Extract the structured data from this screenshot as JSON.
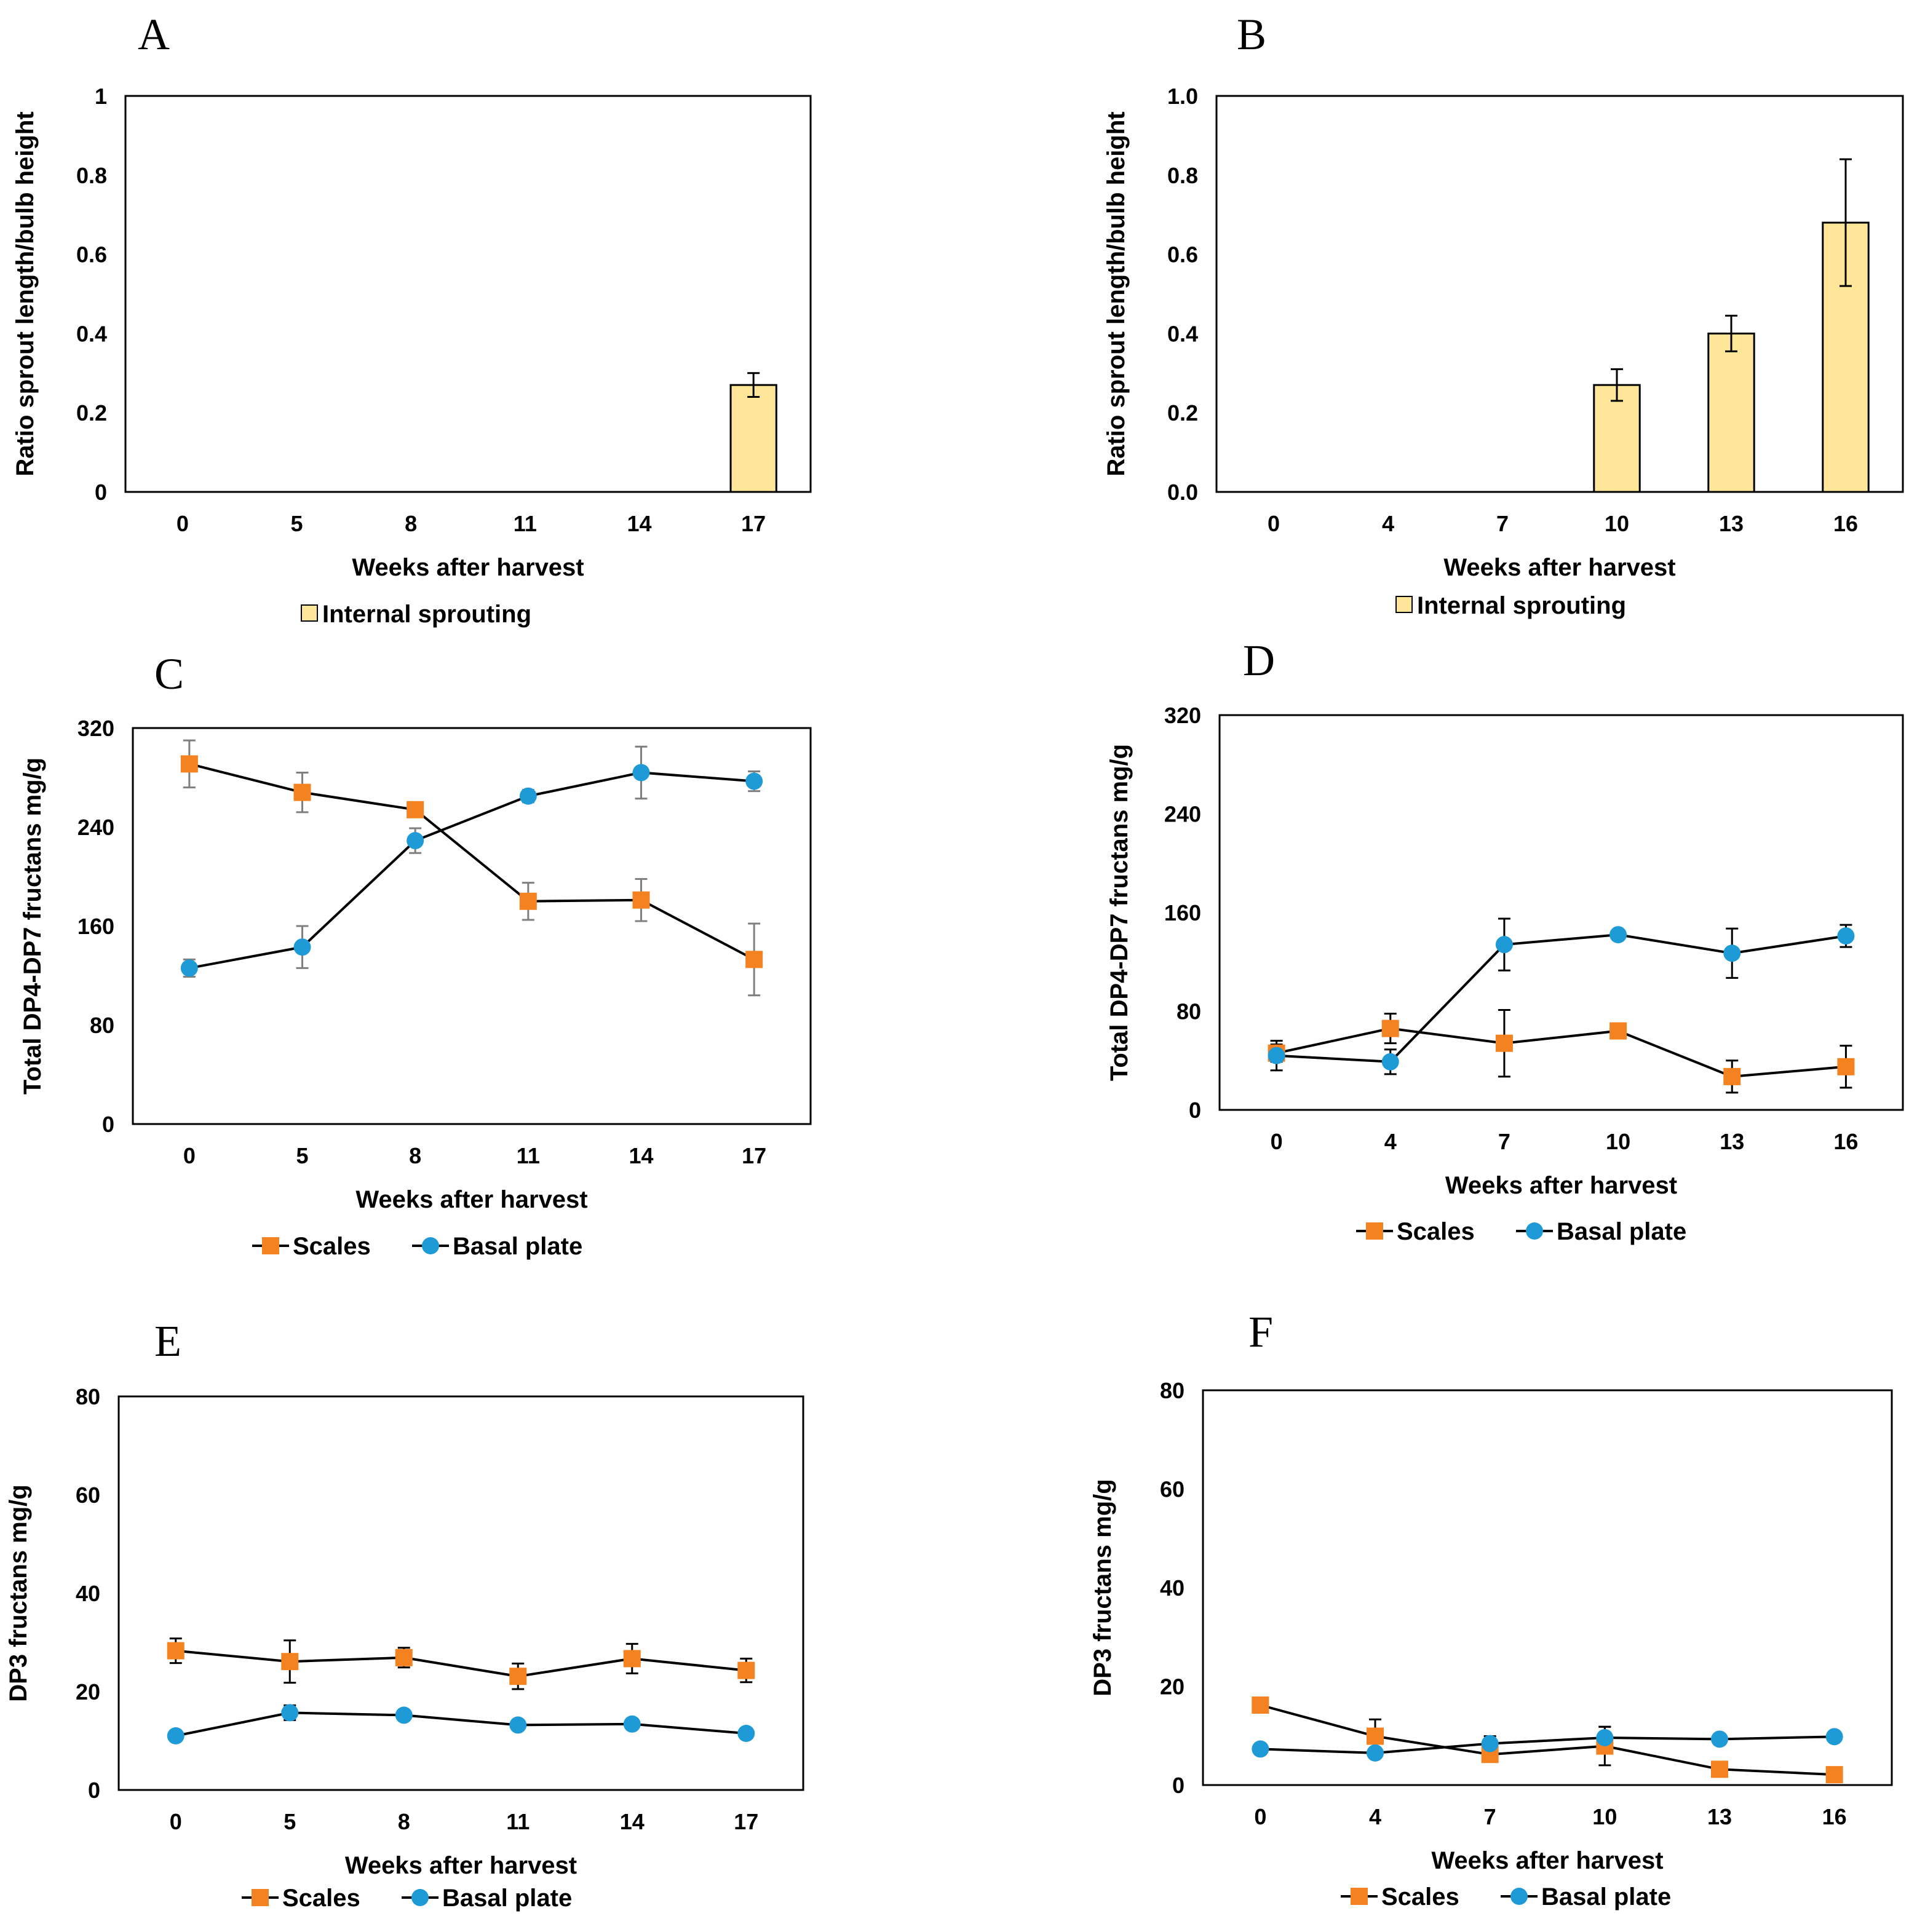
{
  "colors": {
    "bar_fill": "#ffe699",
    "scales": "#f58220",
    "basal_plate": "#1e9ad6",
    "line": "#000000",
    "error_bar_gray": "#7f7f7f"
  },
  "chart_data": [
    {
      "id": "A",
      "panel_label": "A",
      "type": "bar",
      "categories": [
        "0",
        "5",
        "8",
        "11",
        "14",
        "17"
      ],
      "ylim": [
        0,
        1
      ],
      "yticks": [
        "0",
        "0.2",
        "0.4",
        "0.6",
        "0.8",
        "1"
      ],
      "ylabel": "Ratio sprout length/bulb height",
      "xlabel": "Weeks after harvest",
      "series": [
        {
          "name": "Internal sprouting",
          "values": [
            0,
            0,
            0,
            0,
            0,
            0.27
          ],
          "errors": [
            0,
            0,
            0,
            0,
            0,
            0.03
          ]
        }
      ]
    },
    {
      "id": "B",
      "panel_label": "B",
      "type": "bar",
      "categories": [
        "0",
        "4",
        "7",
        "10",
        "13",
        "16"
      ],
      "ylim": [
        0,
        1
      ],
      "yticks": [
        "0.0",
        "0.2",
        "0.4",
        "0.6",
        "0.8",
        "1.0"
      ],
      "ylabel": "Ratio sprout length/bulb height",
      "xlabel": "Weeks after harvest",
      "series": [
        {
          "name": "Internal sprouting",
          "values": [
            0,
            0,
            0,
            0.27,
            0.4,
            0.68
          ],
          "errors": [
            0,
            0,
            0,
            0.04,
            0.045,
            0.16
          ]
        }
      ]
    },
    {
      "id": "C",
      "panel_label": "C",
      "type": "line",
      "categories": [
        "0",
        "5",
        "8",
        "11",
        "14",
        "17"
      ],
      "ylim": [
        0,
        320
      ],
      "yticks": [
        "0",
        "80",
        "160",
        "240",
        "320"
      ],
      "ylabel": "Total DP4-DP7 fructans mg/g",
      "xlabel": "Weeks after harvest",
      "series": [
        {
          "name": "Scales",
          "values": [
            291,
            268,
            254,
            180,
            181,
            133
          ],
          "errors": [
            19,
            16,
            6,
            15,
            17,
            29
          ]
        },
        {
          "name": "Basal plate",
          "values": [
            126,
            143,
            229,
            265,
            284,
            277
          ],
          "errors": [
            7,
            17,
            10,
            5,
            21,
            8
          ]
        }
      ]
    },
    {
      "id": "D",
      "panel_label": "D",
      "type": "line",
      "categories": [
        "0",
        "4",
        "7",
        "10",
        "13",
        "16"
      ],
      "ylim": [
        0,
        320
      ],
      "yticks": [
        "0",
        "80",
        "160",
        "240",
        "320"
      ],
      "ylabel": "Total DP4-DP7 fructans mg/g",
      "xlabel": "Weeks after harvest",
      "series": [
        {
          "name": "Scales",
          "values": [
            46,
            66,
            54,
            64,
            27,
            35
          ],
          "errors": [
            7,
            12,
            27,
            3,
            13,
            17
          ]
        },
        {
          "name": "Basal plate",
          "values": [
            44,
            39,
            134,
            142,
            127,
            141
          ],
          "errors": [
            12,
            10,
            21,
            4,
            20,
            9
          ]
        }
      ]
    },
    {
      "id": "E",
      "panel_label": "E",
      "type": "line",
      "categories": [
        "0",
        "5",
        "8",
        "11",
        "14",
        "17"
      ],
      "ylim": [
        0,
        80
      ],
      "yticks": [
        "0",
        "20",
        "40",
        "60",
        "80"
      ],
      "ylabel": "DP3 fructans mg/g",
      "xlabel": "Weeks after harvest",
      "series": [
        {
          "name": "Scales",
          "values": [
            28.3,
            26.1,
            26.9,
            23.1,
            26.7,
            24.3
          ],
          "errors": [
            2.5,
            4.3,
            2,
            2.6,
            3,
            2.4
          ]
        },
        {
          "name": "Basal plate",
          "values": [
            11,
            15.7,
            15.2,
            13.2,
            13.4,
            11.5
          ],
          "errors": [
            0,
            1.5,
            0,
            0,
            0,
            0
          ]
        }
      ]
    },
    {
      "id": "F",
      "panel_label": "F",
      "type": "line",
      "categories": [
        "0",
        "4",
        "7",
        "10",
        "13",
        "16"
      ],
      "ylim": [
        0,
        80
      ],
      "yticks": [
        "0",
        "20",
        "40",
        "60",
        "80"
      ],
      "ylabel": "DP3 fructans mg/g",
      "xlabel": "Weeks after harvest",
      "series": [
        {
          "name": "Scales",
          "values": [
            16.2,
            9.9,
            6.2,
            7.9,
            3.2,
            2.1
          ],
          "errors": [
            0,
            3.4,
            0,
            3.9,
            0.8,
            0
          ]
        },
        {
          "name": "Basal plate",
          "values": [
            7.3,
            6.5,
            8.4,
            9.6,
            9.3,
            9.8
          ],
          "errors": [
            0,
            0,
            1.5,
            2.2,
            0,
            0
          ]
        }
      ]
    }
  ]
}
